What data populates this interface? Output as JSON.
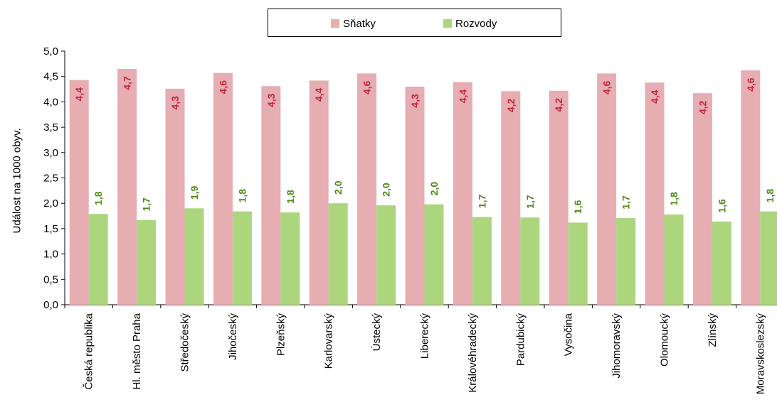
{
  "legend": {
    "marriage_label": "Sňatky",
    "divorce_label": "Rozvody"
  },
  "chart_data": {
    "type": "bar",
    "title": "",
    "xlabel": "",
    "ylabel": "Událost na 1000 obyv.",
    "ylim": [
      0,
      5
    ],
    "yticks": [
      "0,0",
      "0,5",
      "1,0",
      "1,5",
      "2,0",
      "2,5",
      "3,0",
      "3,5",
      "4,0",
      "4,5",
      "5,0"
    ],
    "categories": [
      "Česká republika",
      "Hl. město Praha",
      "Středočeský",
      "Jihočeský",
      "Plzeňský",
      "Karlovarský",
      "Ústecký",
      "Liberecký",
      "Královéhradecký",
      "Pardubický",
      "Vysočina",
      "Jihomoravský",
      "Olomoucký",
      "Zlínský",
      "Moravskoslezský"
    ],
    "series": [
      {
        "name": "Sňatky",
        "color": "#e6adb3",
        "label_color": "#c0283a",
        "values": [
          4.43,
          4.65,
          4.26,
          4.57,
          4.31,
          4.42,
          4.56,
          4.3,
          4.39,
          4.21,
          4.22,
          4.56,
          4.38,
          4.17,
          4.62
        ],
        "labels": [
          "4,4",
          "4,7",
          "4,3",
          "4,6",
          "4,3",
          "4,4",
          "4,6",
          "4,3",
          "4,4",
          "4,2",
          "4,2",
          "4,6",
          "4,4",
          "4,2",
          "4,6"
        ]
      },
      {
        "name": "Rozvody",
        "color": "#acd67e",
        "label_color": "#4f8a1a",
        "values": [
          1.79,
          1.67,
          1.9,
          1.84,
          1.82,
          2.0,
          1.96,
          1.98,
          1.73,
          1.72,
          1.62,
          1.71,
          1.78,
          1.64,
          1.84
        ],
        "labels": [
          "1,8",
          "1,7",
          "1,9",
          "1,8",
          "1,8",
          "2,0",
          "2,0",
          "2,0",
          "1,7",
          "1,7",
          "1,6",
          "1,7",
          "1,8",
          "1,6",
          "1,8"
        ]
      }
    ],
    "grid": false,
    "legend_position": "top"
  }
}
